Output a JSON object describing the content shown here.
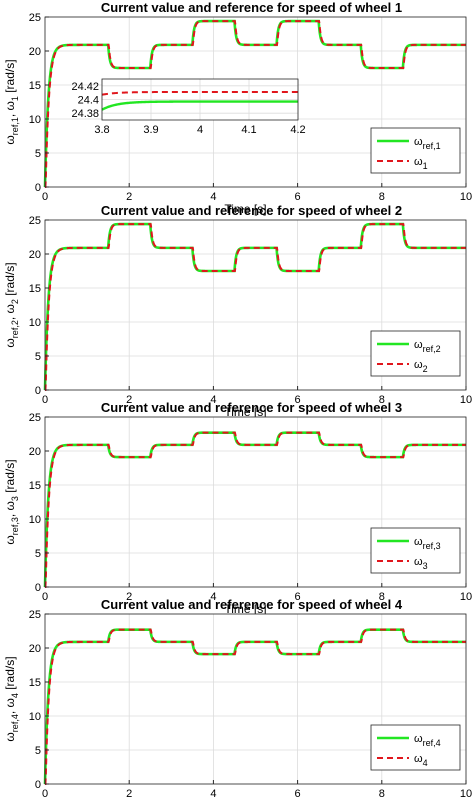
{
  "chart_data": [
    {
      "type": "line",
      "title": "Current value and reference for speed of wheel 1",
      "xlabel": "Time [s]",
      "ylabel": {
        "prefix": "ω",
        "sub1": "ref,1",
        "mid": ", ω",
        "sub2": "1",
        "suffix": " [rad/s]"
      },
      "xlim": [
        0,
        10
      ],
      "ylim": [
        0,
        25
      ],
      "xticks": [
        0,
        2,
        4,
        6,
        8,
        10
      ],
      "yticks": [
        0,
        5,
        10,
        15,
        20,
        25
      ],
      "grid": true,
      "legend_position": "bottom-right",
      "levels": [
        {
          "t": 0,
          "v": 20.9
        },
        {
          "t": 1.5,
          "v": 17.5
        },
        {
          "t": 2.5,
          "v": 20.9
        },
        {
          "t": 3.5,
          "v": 24.4
        },
        {
          "t": 4.5,
          "v": 20.9
        },
        {
          "t": 5.5,
          "v": 24.4
        },
        {
          "t": 6.5,
          "v": 20.9
        },
        {
          "t": 7.5,
          "v": 17.5
        },
        {
          "t": 8.5,
          "v": 20.9
        }
      ],
      "series": [
        {
          "label": {
            "base": "ω",
            "sub": "ref,1"
          },
          "color": "#22e622",
          "style": "solid"
        },
        {
          "label": {
            "base": "ω",
            "sub": "1"
          },
          "color": "#e0161c",
          "style": "dashed"
        }
      ],
      "inset": {
        "xlim": [
          3.8,
          4.2
        ],
        "ylim": [
          24.37,
          24.43
        ],
        "xticks": [
          3.8,
          3.9,
          4.0,
          4.1,
          4.2
        ],
        "xticklabels": [
          "3.8",
          "3.9",
          "4",
          "4.1",
          "4.2"
        ],
        "yticks": [
          24.38,
          24.4,
          24.42
        ],
        "yticklabels": [
          "24.38",
          "24.4",
          "24.42"
        ],
        "ref_value": 24.397,
        "meas_value": 24.411
      }
    },
    {
      "type": "line",
      "title": "Current value and reference for speed of wheel 2",
      "xlabel": "Time [s]",
      "ylabel": {
        "prefix": "ω",
        "sub1": "ref,2",
        "mid": ", ω",
        "sub2": "2",
        "suffix": " [rad/s]"
      },
      "xlim": [
        0,
        10
      ],
      "ylim": [
        0,
        25
      ],
      "xticks": [
        0,
        2,
        4,
        6,
        8,
        10
      ],
      "yticks": [
        0,
        5,
        10,
        15,
        20,
        25
      ],
      "grid": true,
      "legend_position": "bottom-right",
      "levels": [
        {
          "t": 0,
          "v": 20.9
        },
        {
          "t": 1.5,
          "v": 24.4
        },
        {
          "t": 2.5,
          "v": 20.9
        },
        {
          "t": 3.5,
          "v": 17.5
        },
        {
          "t": 4.5,
          "v": 20.9
        },
        {
          "t": 5.5,
          "v": 17.5
        },
        {
          "t": 6.5,
          "v": 20.9
        },
        {
          "t": 7.5,
          "v": 24.4
        },
        {
          "t": 8.5,
          "v": 20.9
        }
      ],
      "series": [
        {
          "label": {
            "base": "ω",
            "sub": "ref,2"
          },
          "color": "#22e622",
          "style": "solid"
        },
        {
          "label": {
            "base": "ω",
            "sub": "2"
          },
          "color": "#e0161c",
          "style": "dashed"
        }
      ]
    },
    {
      "type": "line",
      "title": "Current value and reference for speed of wheel 3",
      "xlabel": "Time [s]",
      "ylabel": {
        "prefix": "ω",
        "sub1": "ref,3",
        "mid": ", ω",
        "sub2": "3",
        "suffix": " [rad/s]"
      },
      "xlim": [
        0,
        10
      ],
      "ylim": [
        0,
        25
      ],
      "xticks": [
        0,
        2,
        4,
        6,
        8,
        10
      ],
      "yticks": [
        0,
        5,
        10,
        15,
        20,
        25
      ],
      "grid": true,
      "legend_position": "bottom-right",
      "levels": [
        {
          "t": 0,
          "v": 20.9
        },
        {
          "t": 1.5,
          "v": 19.1
        },
        {
          "t": 2.5,
          "v": 20.9
        },
        {
          "t": 3.5,
          "v": 22.7
        },
        {
          "t": 4.5,
          "v": 20.9
        },
        {
          "t": 5.5,
          "v": 22.7
        },
        {
          "t": 6.5,
          "v": 20.9
        },
        {
          "t": 7.5,
          "v": 19.1
        },
        {
          "t": 8.5,
          "v": 20.9
        }
      ],
      "series": [
        {
          "label": {
            "base": "ω",
            "sub": "ref,3"
          },
          "color": "#22e622",
          "style": "solid"
        },
        {
          "label": {
            "base": "ω",
            "sub": "3"
          },
          "color": "#e0161c",
          "style": "dashed"
        }
      ]
    },
    {
      "type": "line",
      "title": "Current value and reference for speed of wheel 4",
      "xlabel": "Time [s]",
      "ylabel": {
        "prefix": "ω",
        "sub1": "ref,4",
        "mid": ", ω",
        "sub2": "4",
        "suffix": " [rad/s]"
      },
      "xlim": [
        0,
        10
      ],
      "ylim": [
        0,
        25
      ],
      "xticks": [
        0,
        2,
        4,
        6,
        8,
        10
      ],
      "yticks": [
        0,
        5,
        10,
        15,
        20,
        25
      ],
      "grid": true,
      "legend_position": "bottom-right",
      "levels": [
        {
          "t": 0,
          "v": 20.9
        },
        {
          "t": 1.5,
          "v": 22.7
        },
        {
          "t": 2.5,
          "v": 20.9
        },
        {
          "t": 3.5,
          "v": 19.1
        },
        {
          "t": 4.5,
          "v": 20.9
        },
        {
          "t": 5.5,
          "v": 19.1
        },
        {
          "t": 6.5,
          "v": 20.9
        },
        {
          "t": 7.5,
          "v": 22.7
        },
        {
          "t": 8.5,
          "v": 20.9
        }
      ],
      "series": [
        {
          "label": {
            "base": "ω",
            "sub": "ref,4"
          },
          "color": "#22e622",
          "style": "solid"
        },
        {
          "label": {
            "base": "ω",
            "sub": "4"
          },
          "color": "#e0161c",
          "style": "dashed"
        }
      ]
    }
  ]
}
